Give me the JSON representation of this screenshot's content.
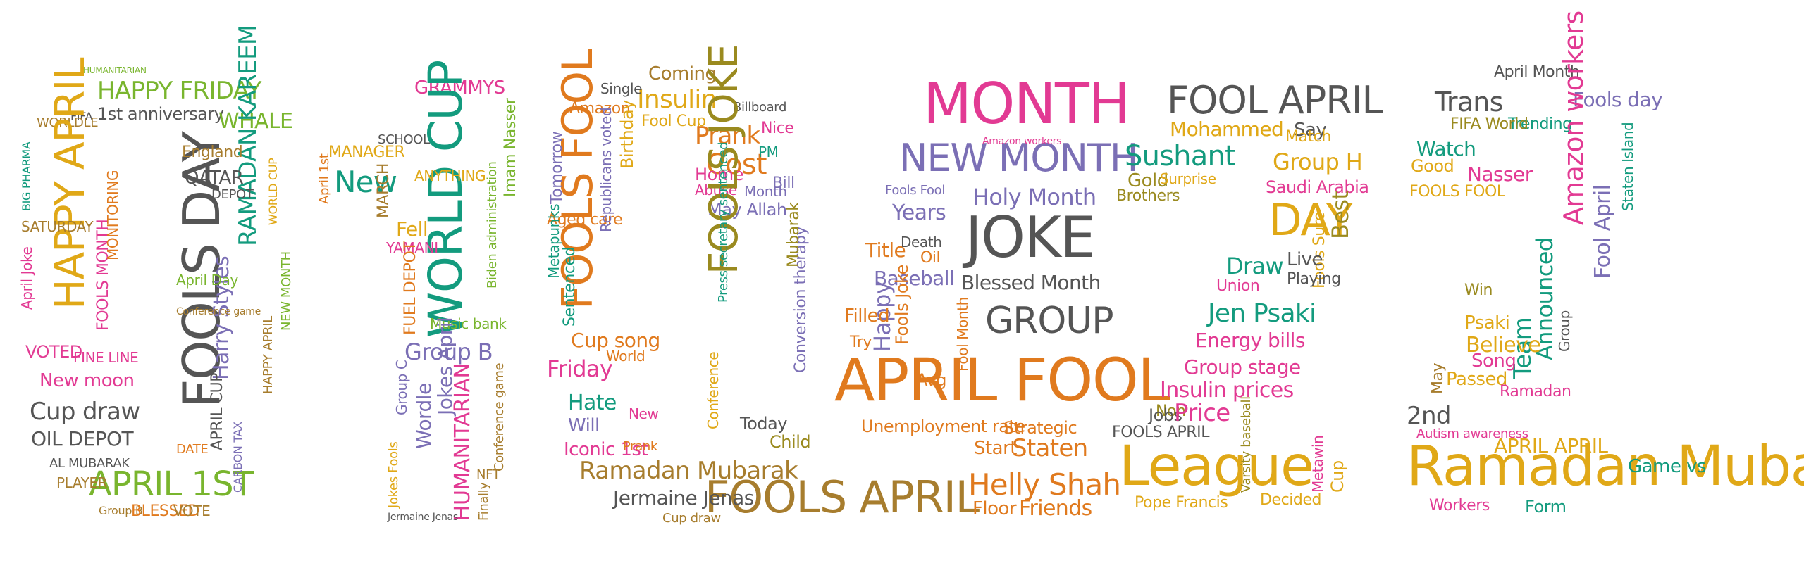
{
  "palette": {
    "magenta": "#e23a93",
    "green": "#79b52e",
    "orange": "#e07a1e",
    "teal": "#139b7e",
    "purple": "#7b6fb5",
    "gray": "#555555",
    "gold": "#e0a817",
    "brown": "#a77d2e",
    "olive": "#9a8a1f"
  },
  "words": [
    {
      "text": "HUMANITARIAN",
      "color": "green"
    },
    {
      "text": "HAPPY FRIDAY",
      "color": "green"
    },
    {
      "text": "1st anniversary",
      "color": "gray"
    },
    {
      "text": "WHALE",
      "color": "green"
    },
    {
      "text": "FIFA",
      "color": "gray"
    },
    {
      "text": "WORLDLE",
      "color": "brown"
    },
    {
      "text": "HAPPY APRIL",
      "color": "gold"
    },
    {
      "text": "FOOLS DAY",
      "color": "gray"
    },
    {
      "text": "RAMADAN KAREEM",
      "color": "teal"
    },
    {
      "text": "Harry Styles",
      "color": "purple"
    },
    {
      "text": "England",
      "color": "brown"
    },
    {
      "text": "QATAR",
      "color": "gray"
    },
    {
      "text": "BIG PHARMA",
      "color": "teal"
    },
    {
      "text": "SATURDAY",
      "color": "brown"
    },
    {
      "text": "April Joke",
      "color": "magenta"
    },
    {
      "text": "FOOLS MONTH",
      "color": "magenta"
    },
    {
      "text": "MONITORING",
      "color": "orange"
    },
    {
      "text": "April Day",
      "color": "green"
    },
    {
      "text": "VOTED",
      "color": "magenta"
    },
    {
      "text": "FINE LINE",
      "color": "magenta"
    },
    {
      "text": "New moon",
      "color": "magenta"
    },
    {
      "text": "Cup draw",
      "color": "gray"
    },
    {
      "text": "OIL DEPOT",
      "color": "gray"
    },
    {
      "text": "APRIL 1ST",
      "color": "green"
    },
    {
      "text": "APRIL CUP",
      "color": "gray"
    },
    {
      "text": "Group B",
      "color": "brown"
    },
    {
      "text": "BLESSED",
      "color": "orange"
    },
    {
      "text": "VOTE",
      "color": "brown"
    },
    {
      "text": "CARBON TAX",
      "color": "purple"
    },
    {
      "text": "DATE",
      "color": "orange"
    },
    {
      "text": "PLAYER",
      "color": "brown"
    },
    {
      "text": "AL MUBARAK",
      "color": "gray"
    },
    {
      "text": "DEPOT",
      "color": "gray"
    },
    {
      "text": "HAPPY APRIL",
      "color": "brown"
    },
    {
      "text": "WORLD CUP",
      "color": "gold"
    },
    {
      "text": "NEW MONTH",
      "color": "green"
    },
    {
      "text": "Conference game",
      "color": "brown"
    },
    {
      "text": "GRAMMYS",
      "color": "magenta"
    },
    {
      "text": "WORLD CUP",
      "color": "teal"
    },
    {
      "text": "MANAGER",
      "color": "gold"
    },
    {
      "text": "New",
      "color": "teal"
    },
    {
      "text": "SCHOOL",
      "color": "gray"
    },
    {
      "text": "MARCH",
      "color": "brown"
    },
    {
      "text": "ANYTHING",
      "color": "gold"
    },
    {
      "text": "Biden administration",
      "color": "green"
    },
    {
      "text": "Imam Nasser",
      "color": "green"
    },
    {
      "text": "April 1st",
      "color": "orange"
    },
    {
      "text": "Fell",
      "color": "gold"
    },
    {
      "text": "YAMANI",
      "color": "magenta"
    },
    {
      "text": "FUEL DEPOT",
      "color": "orange"
    },
    {
      "text": "Group B",
      "color": "purple"
    },
    {
      "text": "Music bank",
      "color": "green"
    },
    {
      "text": "Wordle",
      "color": "purple"
    },
    {
      "text": "Jokes April",
      "color": "purple"
    },
    {
      "text": "HUMANITARIAN",
      "color": "magenta"
    },
    {
      "text": "Finally",
      "color": "brown"
    },
    {
      "text": "Conference game",
      "color": "brown"
    },
    {
      "text": "Jokes Fools",
      "color": "gold"
    },
    {
      "text": "Group C",
      "color": "purple"
    },
    {
      "text": "Jermaine Jenas",
      "color": "gray"
    },
    {
      "text": "NFT",
      "color": "brown"
    },
    {
      "text": "Coming",
      "color": "brown"
    },
    {
      "text": "Insulin",
      "color": "gold"
    },
    {
      "text": "Single",
      "color": "gray"
    },
    {
      "text": "Fool Cup",
      "color": "gold"
    },
    {
      "text": "Billboard",
      "color": "gray"
    },
    {
      "text": "Amazon",
      "color": "orange"
    },
    {
      "text": "FOOLS FOOL",
      "color": "orange"
    },
    {
      "text": "Birthday",
      "color": "gold"
    },
    {
      "text": "Tomorrow",
      "color": "purple"
    },
    {
      "text": "Prank",
      "color": "orange"
    },
    {
      "text": "Cost",
      "color": "orange"
    },
    {
      "text": "Nice",
      "color": "magenta"
    },
    {
      "text": "PM",
      "color": "teal"
    },
    {
      "text": "Bill",
      "color": "purple"
    },
    {
      "text": "Home",
      "color": "magenta"
    },
    {
      "text": "Abuse",
      "color": "magenta"
    },
    {
      "text": "Month",
      "color": "purple"
    },
    {
      "text": "Aged care",
      "color": "orange"
    },
    {
      "text": "Republicans voted",
      "color": "purple"
    },
    {
      "text": "Conversion therapy",
      "color": "purple"
    },
    {
      "text": "May Allah",
      "color": "purple"
    },
    {
      "text": "FOOLS JOKE",
      "color": "olive"
    },
    {
      "text": "Mubarak",
      "color": "olive"
    },
    {
      "text": "Metapunks",
      "color": "teal"
    },
    {
      "text": "Sentenced",
      "color": "teal"
    },
    {
      "text": "Cup song",
      "color": "orange"
    },
    {
      "text": "Friday",
      "color": "magenta"
    },
    {
      "text": "World",
      "color": "orange"
    },
    {
      "text": "Hate",
      "color": "teal"
    },
    {
      "text": "New",
      "color": "magenta"
    },
    {
      "text": "Will",
      "color": "purple"
    },
    {
      "text": "Iconic 1st",
      "color": "magenta"
    },
    {
      "text": "Prank",
      "color": "orange"
    },
    {
      "text": "Conference",
      "color": "gold"
    },
    {
      "text": "Press secretary sentenced",
      "color": "teal"
    },
    {
      "text": "Today",
      "color": "gray"
    },
    {
      "text": "Child",
      "color": "olive"
    },
    {
      "text": "FOOLS APRIL",
      "color": "brown"
    },
    {
      "text": "Ramadan Mubarak",
      "color": "brown"
    },
    {
      "text": "Jermaine Jenas",
      "color": "gray"
    },
    {
      "text": "Cup draw",
      "color": "brown"
    },
    {
      "text": "MONTH",
      "color": "magenta"
    },
    {
      "text": "NEW MONTH",
      "color": "purple"
    },
    {
      "text": "Holy Month",
      "color": "purple"
    },
    {
      "text": "Amazon workers",
      "color": "magenta"
    },
    {
      "text": "Fools Fool",
      "color": "purple"
    },
    {
      "text": "Years",
      "color": "purple"
    },
    {
      "text": "JOKE",
      "color": "gray"
    },
    {
      "text": "Title",
      "color": "orange"
    },
    {
      "text": "Death",
      "color": "gray"
    },
    {
      "text": "Oil",
      "color": "orange"
    },
    {
      "text": "Baseball",
      "color": "purple"
    },
    {
      "text": "Blessed Month",
      "color": "gray"
    },
    {
      "text": "GROUP",
      "color": "gray"
    },
    {
      "text": "Happy",
      "color": "purple"
    },
    {
      "text": "Filled",
      "color": "orange"
    },
    {
      "text": "Try",
      "color": "orange"
    },
    {
      "text": "Fools Joke",
      "color": "orange"
    },
    {
      "text": "Fool Month",
      "color": "orange"
    },
    {
      "text": "APRIL FOOL",
      "color": "orange"
    },
    {
      "text": "Avg",
      "color": "orange"
    },
    {
      "text": "Unemployment rate",
      "color": "orange"
    },
    {
      "text": "Strategic",
      "color": "orange"
    },
    {
      "text": "Start",
      "color": "orange"
    },
    {
      "text": "Staten",
      "color": "orange"
    },
    {
      "text": "Helly Shah",
      "color": "orange"
    },
    {
      "text": "Floor",
      "color": "orange"
    },
    {
      "text": "Friends",
      "color": "orange"
    },
    {
      "text": "FOOL APRIL",
      "color": "gray"
    },
    {
      "text": "Mohammed",
      "color": "gold"
    },
    {
      "text": "Sushant",
      "color": "teal"
    },
    {
      "text": "Gold",
      "color": "olive"
    },
    {
      "text": "Surprise",
      "color": "gold"
    },
    {
      "text": "Brothers",
      "color": "olive"
    },
    {
      "text": "Say",
      "color": "gray"
    },
    {
      "text": "Match",
      "color": "gold"
    },
    {
      "text": "Group H",
      "color": "gold"
    },
    {
      "text": "Saudi Arabia",
      "color": "magenta"
    },
    {
      "text": "DAY",
      "color": "gold"
    },
    {
      "text": "Best",
      "color": "olive"
    },
    {
      "text": "Fools Sure",
      "color": "gold"
    },
    {
      "text": "Draw",
      "color": "teal"
    },
    {
      "text": "Live",
      "color": "gray"
    },
    {
      "text": "Playing",
      "color": "gray"
    },
    {
      "text": "Union",
      "color": "magenta"
    },
    {
      "text": "Jen Psaki",
      "color": "teal"
    },
    {
      "text": "Energy bills",
      "color": "magenta"
    },
    {
      "text": "Group stage",
      "color": "magenta"
    },
    {
      "text": "Insulin prices",
      "color": "magenta"
    },
    {
      "text": "Non",
      "color": "olive"
    },
    {
      "text": "Jobs",
      "color": "gray"
    },
    {
      "text": "Price",
      "color": "magenta"
    },
    {
      "text": "FOOLS APRIL",
      "color": "gray"
    },
    {
      "text": "League",
      "color": "gold"
    },
    {
      "text": "Varsity baseball",
      "color": "olive"
    },
    {
      "text": "Pope Francis",
      "color": "gold"
    },
    {
      "text": "Decided",
      "color": "gold"
    },
    {
      "text": "Cup",
      "color": "gold"
    },
    {
      "text": "Metawin",
      "color": "magenta"
    },
    {
      "text": "April Month",
      "color": "gray"
    },
    {
      "text": "Trans",
      "color": "gray"
    },
    {
      "text": "Fools day",
      "color": "purple"
    },
    {
      "text": "Trending",
      "color": "teal"
    },
    {
      "text": "FIFA World",
      "color": "olive"
    },
    {
      "text": "Watch",
      "color": "teal"
    },
    {
      "text": "Good",
      "color": "gold"
    },
    {
      "text": "Nasser",
      "color": "magenta"
    },
    {
      "text": "FOOLS FOOL",
      "color": "gold"
    },
    {
      "text": "Amazon workers",
      "color": "magenta"
    },
    {
      "text": "Fool April",
      "color": "purple"
    },
    {
      "text": "Staten Island",
      "color": "teal"
    },
    {
      "text": "Announced",
      "color": "teal"
    },
    {
      "text": "Group",
      "color": "gray"
    },
    {
      "text": "Team",
      "color": "teal"
    },
    {
      "text": "Win",
      "color": "olive"
    },
    {
      "text": "Psaki",
      "color": "gold"
    },
    {
      "text": "Believe",
      "color": "gold"
    },
    {
      "text": "Song",
      "color": "magenta"
    },
    {
      "text": "May",
      "color": "brown"
    },
    {
      "text": "Passed",
      "color": "gold"
    },
    {
      "text": "Ramadan",
      "color": "magenta"
    },
    {
      "text": "2nd",
      "color": "gray"
    },
    {
      "text": "APRIL APRIL",
      "color": "gold"
    },
    {
      "text": "Ramadan Mubarak",
      "color": "gold"
    },
    {
      "text": "Autism awareness",
      "color": "magenta"
    },
    {
      "text": "Workers",
      "color": "magenta"
    },
    {
      "text": "Form",
      "color": "teal"
    },
    {
      "text": "Game vs",
      "color": "teal"
    }
  ]
}
